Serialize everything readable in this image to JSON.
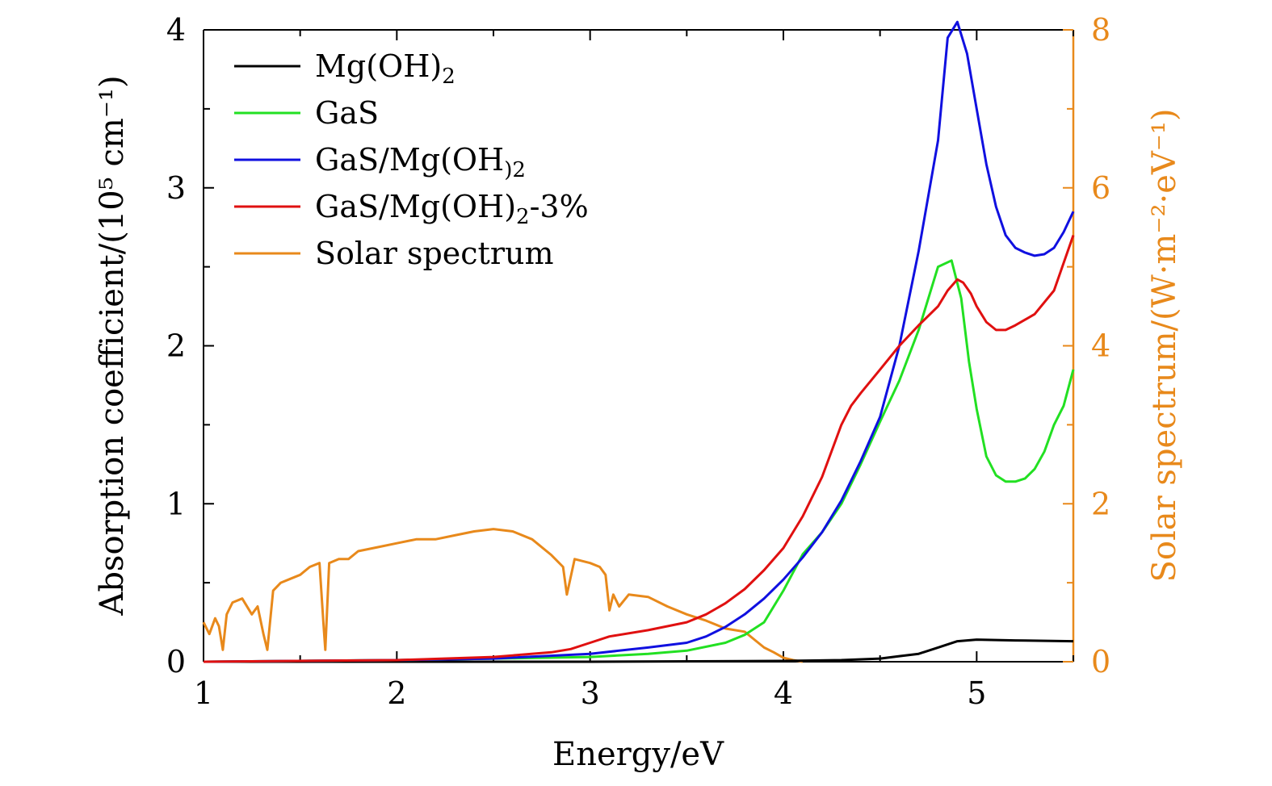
{
  "chart_data": {
    "type": "line",
    "xlabel": "Energy/eV",
    "ylabel": "Absorption coefficient/(10⁵ cm⁻¹)",
    "y2label": "Solar spectrum/(W·m⁻²·eV⁻¹)",
    "xlim": [
      1,
      5.5
    ],
    "ylim": [
      0,
      4
    ],
    "y2lim": [
      0,
      8
    ],
    "x_ticks": [
      "1",
      "2",
      "3",
      "4",
      "5"
    ],
    "y_ticks": [
      "0",
      "1",
      "2",
      "3",
      "4"
    ],
    "y2_ticks": [
      "0",
      "2",
      "4",
      "6",
      "8"
    ],
    "grid": false,
    "legend_position": "top-left",
    "colors": {
      "axis": "#000000",
      "right_axis": "#e8891b"
    },
    "series": [
      {
        "name": "Mg(OH)2",
        "legend_main": "Mg(OH)",
        "legend_sub": "2",
        "legend_tail": "",
        "axis": "left",
        "color": "#000000",
        "x": [
          1.0,
          2.0,
          3.0,
          4.0,
          4.3,
          4.5,
          4.6,
          4.7,
          4.8,
          4.9,
          5.0,
          5.2,
          5.5
        ],
        "y": [
          0.0,
          0.0,
          0.0,
          0.005,
          0.01,
          0.02,
          0.035,
          0.05,
          0.09,
          0.13,
          0.14,
          0.135,
          0.13
        ]
      },
      {
        "name": "GaS",
        "legend_main": "GaS",
        "legend_sub": "",
        "legend_tail": "",
        "axis": "left",
        "color": "#22e022",
        "x": [
          1.0,
          2.0,
          2.5,
          3.0,
          3.3,
          3.5,
          3.7,
          3.8,
          3.9,
          4.0,
          4.1,
          4.2,
          4.3,
          4.4,
          4.5,
          4.6,
          4.7,
          4.8,
          4.87,
          4.92,
          4.96,
          5.0,
          5.05,
          5.1,
          5.15,
          5.2,
          5.25,
          5.3,
          5.35,
          5.4,
          5.45,
          5.5
        ],
        "y": [
          0.0,
          0.01,
          0.02,
          0.03,
          0.05,
          0.07,
          0.12,
          0.17,
          0.25,
          0.45,
          0.68,
          0.82,
          1.0,
          1.25,
          1.52,
          1.78,
          2.1,
          2.5,
          2.54,
          2.3,
          1.9,
          1.6,
          1.3,
          1.18,
          1.14,
          1.14,
          1.16,
          1.22,
          1.33,
          1.5,
          1.62,
          1.85
        ]
      },
      {
        "name": "GaS/Mg(OH)2",
        "legend_main": "GaS/Mg(OH",
        "legend_sub": ")2",
        "legend_tail": "",
        "axis": "left",
        "color": "#1010e0",
        "x": [
          1.0,
          2.0,
          2.5,
          3.0,
          3.3,
          3.5,
          3.6,
          3.7,
          3.8,
          3.9,
          4.0,
          4.1,
          4.2,
          4.3,
          4.4,
          4.5,
          4.6,
          4.7,
          4.8,
          4.85,
          4.9,
          4.95,
          5.0,
          5.05,
          5.1,
          5.15,
          5.2,
          5.25,
          5.3,
          5.35,
          5.4,
          5.45,
          5.5
        ],
        "y": [
          0.0,
          0.01,
          0.02,
          0.05,
          0.09,
          0.12,
          0.16,
          0.22,
          0.3,
          0.4,
          0.52,
          0.66,
          0.82,
          1.02,
          1.27,
          1.55,
          2.0,
          2.6,
          3.3,
          3.95,
          4.05,
          3.85,
          3.5,
          3.15,
          2.88,
          2.7,
          2.62,
          2.59,
          2.57,
          2.58,
          2.62,
          2.72,
          2.85
        ]
      },
      {
        "name": "GaS/Mg(OH)2-3%",
        "legend_main": "GaS/Mg(OH)",
        "legend_sub": "2",
        "legend_tail": "-3%",
        "axis": "left",
        "color": "#e01010",
        "x": [
          1.0,
          2.0,
          2.5,
          2.8,
          2.9,
          3.0,
          3.1,
          3.3,
          3.5,
          3.6,
          3.7,
          3.8,
          3.9,
          4.0,
          4.1,
          4.2,
          4.3,
          4.35,
          4.4,
          4.5,
          4.6,
          4.7,
          4.8,
          4.85,
          4.9,
          4.93,
          4.97,
          5.0,
          5.05,
          5.1,
          5.15,
          5.2,
          5.3,
          5.4,
          5.5
        ],
        "y": [
          0.0,
          0.01,
          0.03,
          0.06,
          0.08,
          0.12,
          0.16,
          0.2,
          0.25,
          0.3,
          0.37,
          0.46,
          0.58,
          0.72,
          0.92,
          1.17,
          1.5,
          1.62,
          1.7,
          1.85,
          2.0,
          2.13,
          2.25,
          2.35,
          2.42,
          2.4,
          2.33,
          2.25,
          2.15,
          2.1,
          2.1,
          2.13,
          2.2,
          2.35,
          2.7
        ]
      },
      {
        "name": "Solar spectrum",
        "legend_main": "Solar spectrum",
        "legend_sub": "",
        "legend_tail": "",
        "axis": "right",
        "color": "#e8891b",
        "x": [
          1.0,
          1.03,
          1.06,
          1.08,
          1.1,
          1.12,
          1.15,
          1.2,
          1.25,
          1.28,
          1.31,
          1.33,
          1.36,
          1.4,
          1.45,
          1.5,
          1.55,
          1.6,
          1.62,
          1.63,
          1.65,
          1.7,
          1.75,
          1.8,
          1.9,
          2.0,
          2.1,
          2.2,
          2.3,
          2.4,
          2.5,
          2.6,
          2.7,
          2.8,
          2.86,
          2.88,
          2.92,
          3.0,
          3.05,
          3.08,
          3.1,
          3.12,
          3.15,
          3.2,
          3.3,
          3.4,
          3.5,
          3.6,
          3.7,
          3.75,
          3.8,
          3.85,
          3.9,
          3.95,
          4.0,
          4.05,
          4.1
        ],
        "y": [
          0.5,
          0.35,
          0.55,
          0.45,
          0.15,
          0.6,
          0.75,
          0.8,
          0.6,
          0.7,
          0.35,
          0.15,
          0.9,
          1.0,
          1.05,
          1.1,
          1.2,
          1.25,
          0.5,
          0.15,
          1.25,
          1.3,
          1.3,
          1.4,
          1.45,
          1.5,
          1.55,
          1.55,
          1.6,
          1.65,
          1.68,
          1.65,
          1.55,
          1.35,
          1.2,
          0.85,
          1.3,
          1.25,
          1.2,
          1.1,
          0.65,
          0.85,
          0.7,
          0.85,
          0.82,
          0.7,
          0.6,
          0.52,
          0.42,
          0.4,
          0.38,
          0.28,
          0.18,
          0.12,
          0.05,
          0.02,
          0.0
        ]
      }
    ]
  }
}
